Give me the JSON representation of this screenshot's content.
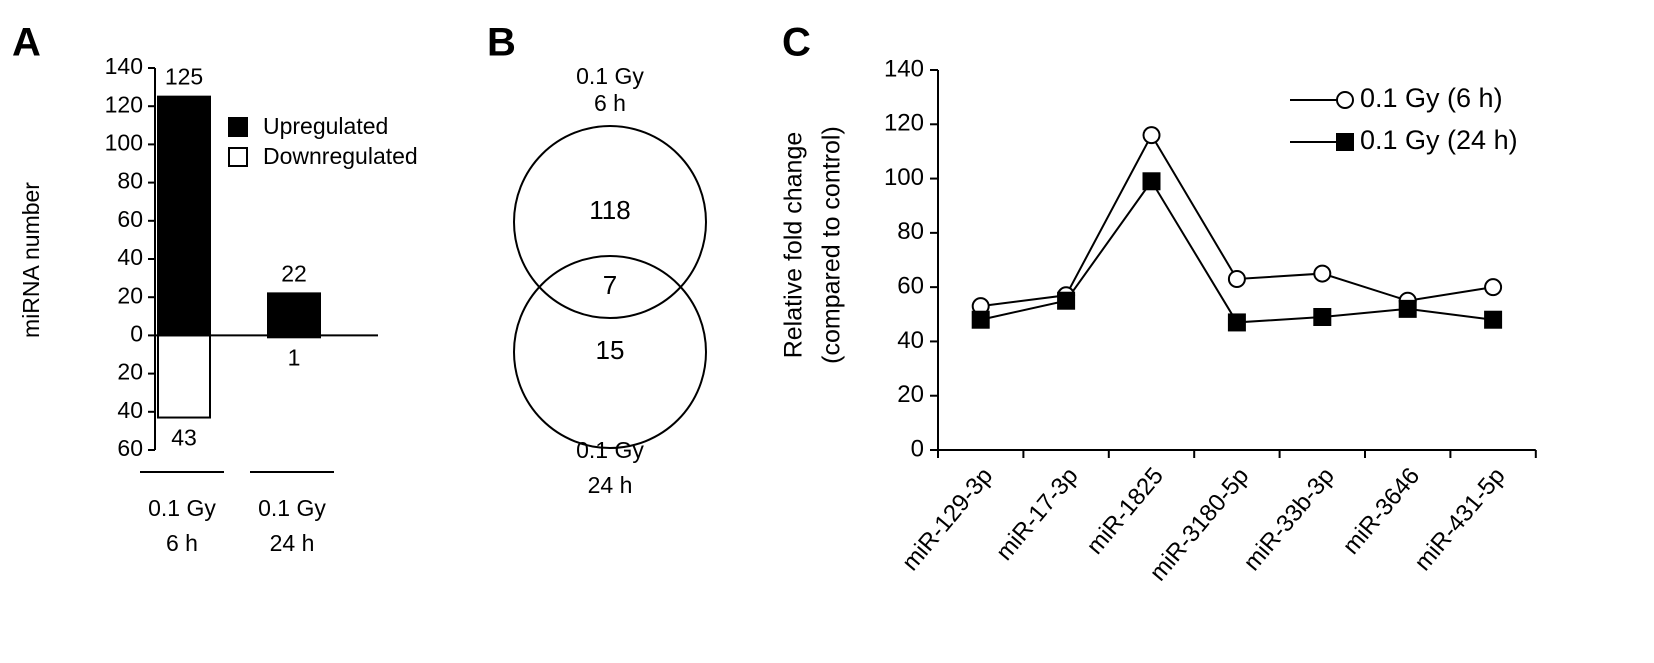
{
  "chart_data": [
    {
      "type": "bar",
      "panel_label": "A",
      "y_label": "miRNA number",
      "categories": [
        [
          "0.1 Gy",
          "6 h"
        ],
        [
          "0.1 Gy",
          "24 h"
        ]
      ],
      "series": [
        {
          "name": "Upregulated",
          "color": "#000000",
          "values": [
            125,
            22
          ]
        },
        {
          "name": "Downregulated",
          "color": "#ffffff",
          "values": [
            -43,
            -1
          ],
          "value_labels": [
            "43",
            "1"
          ]
        }
      ],
      "ylim": [
        -60,
        140
      ],
      "yticks": [
        {
          "value": -60,
          "label": "60"
        },
        {
          "value": -40,
          "label": "40"
        },
        {
          "value": -20,
          "label": "20"
        },
        0,
        20,
        40,
        60,
        80,
        100,
        120,
        140
      ]
    },
    {
      "type": "venn",
      "panel_label": "B",
      "sets": [
        {
          "label": [
            "0.1 Gy",
            "6 h"
          ],
          "only": 118
        },
        {
          "label": [
            "0.1 Gy",
            "24 h"
          ],
          "only": 15
        }
      ],
      "overlap": 7
    },
    {
      "type": "line",
      "panel_label": "C",
      "y_label": [
        "Relative fold change",
        "(compared to control)"
      ],
      "categories": [
        "miR-129-3p",
        "miR-17-3p",
        "miR-1825",
        "miR-3180-5p",
        "miR-33b-3p",
        "miR-3646",
        "miR-431-5p"
      ],
      "series": [
        {
          "name": "0.1 Gy (6 h)",
          "color": "#000000",
          "marker": "circle",
          "values": [
            53,
            57,
            116,
            63,
            65,
            55,
            60
          ]
        },
        {
          "name": "0.1 Gy (24 h)",
          "color": "#000000",
          "marker": "square",
          "values": [
            48,
            55,
            99,
            47,
            49,
            52,
            48
          ]
        }
      ],
      "ylim": [
        0,
        140
      ],
      "yticks": [
        0,
        20,
        40,
        60,
        80,
        100,
        120,
        140
      ],
      "legend": "upper right"
    }
  ]
}
